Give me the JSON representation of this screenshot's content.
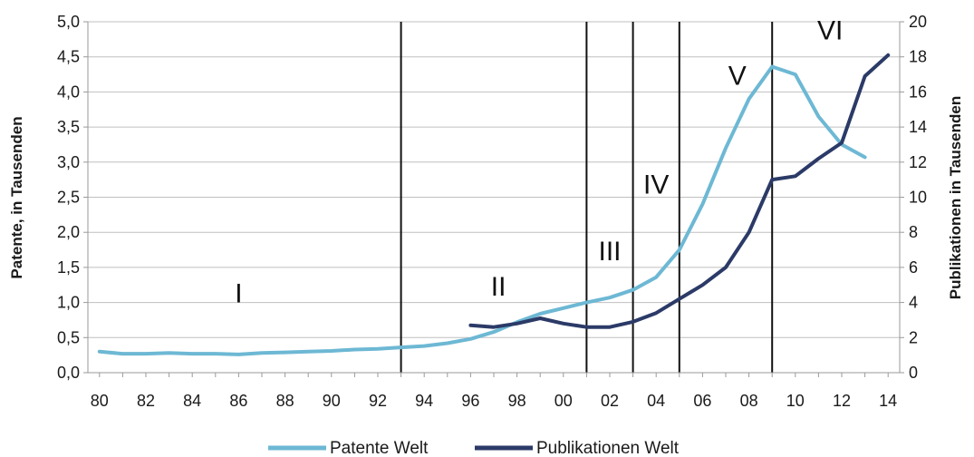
{
  "chart_data": {
    "type": "line",
    "xlabel": "",
    "ylabel_left": "Patente, in Tausenden",
    "ylabel_right": "Publikationen in Tausenden",
    "x_ticks": [
      "80",
      "82",
      "84",
      "86",
      "88",
      "90",
      "92",
      "94",
      "96",
      "98",
      "00",
      "02",
      "04",
      "06",
      "08",
      "10",
      "12",
      "14"
    ],
    "y_left_ticks": [
      "0,0",
      "0,5",
      "1,0",
      "1,5",
      "2,0",
      "2,5",
      "3,0",
      "3,5",
      "4,0",
      "4,5",
      "5,0"
    ],
    "y_right_ticks": [
      "0",
      "2",
      "4",
      "6",
      "8",
      "10",
      "12",
      "14",
      "16",
      "18",
      "20"
    ],
    "ylim_left": [
      0,
      5
    ],
    "ylim_right": [
      0,
      20
    ],
    "xlim": [
      1979.5,
      2014.5
    ],
    "grid": true,
    "legend_position": "bottom",
    "series": [
      {
        "name": "Patente Welt",
        "axis": "left",
        "color": "#6db8d4",
        "x": [
          1980,
          1981,
          1982,
          1983,
          1984,
          1985,
          1986,
          1987,
          1988,
          1989,
          1990,
          1991,
          1992,
          1993,
          1994,
          1995,
          1996,
          1997,
          1998,
          1999,
          2000,
          2001,
          2002,
          2003,
          2004,
          2005,
          2006,
          2007,
          2008,
          2009,
          2010,
          2011,
          2012,
          2013
        ],
        "values": [
          0.3,
          0.27,
          0.27,
          0.28,
          0.27,
          0.27,
          0.26,
          0.28,
          0.29,
          0.3,
          0.31,
          0.33,
          0.34,
          0.36,
          0.38,
          0.42,
          0.48,
          0.58,
          0.72,
          0.84,
          0.92,
          1.0,
          1.07,
          1.18,
          1.36,
          1.75,
          2.4,
          3.2,
          3.9,
          4.36,
          4.25,
          3.65,
          3.25,
          3.07
        ]
      },
      {
        "name": "Publikationen Welt",
        "axis": "right",
        "color": "#2b3a67",
        "x": [
          1996,
          1997,
          1998,
          1999,
          2000,
          2001,
          2002,
          2003,
          2004,
          2005,
          2006,
          2007,
          2008,
          2009,
          2010,
          2011,
          2012,
          2013,
          2014
        ],
        "values": [
          2.7,
          2.6,
          2.8,
          3.1,
          2.8,
          2.6,
          2.6,
          2.9,
          3.4,
          4.2,
          5.0,
          6.0,
          8.0,
          11.0,
          11.2,
          12.2,
          13.1,
          16.9,
          18.1
        ]
      }
    ],
    "phase_dividers": [
      1993,
      2001,
      2003,
      2005,
      2009
    ],
    "phases": [
      {
        "label": "I",
        "x": 1986.0,
        "y": 1.0
      },
      {
        "label": "II",
        "x": 1997.2,
        "y": 1.1
      },
      {
        "label": "III",
        "x": 2002.0,
        "y": 1.6
      },
      {
        "label": "IV",
        "x": 2004.0,
        "y": 2.55
      },
      {
        "label": "V",
        "x": 2007.5,
        "y": 4.1
      },
      {
        "label": "VI",
        "x": 2011.5,
        "y": 4.75
      }
    ]
  }
}
